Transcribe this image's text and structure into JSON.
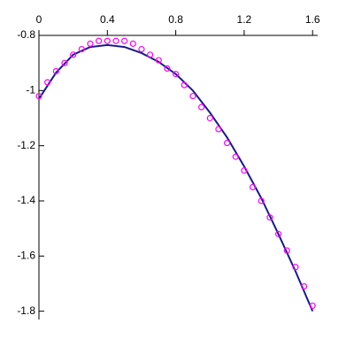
{
  "chart_data": {
    "type": "line",
    "xlim": [
      0,
      1.63
    ],
    "xticks": [
      0,
      0.4,
      0.8,
      1.2,
      1.6
    ],
    "xaxis_position": "top",
    "ylim": [
      -1.83,
      -0.8
    ],
    "yticks": [
      -0.8,
      -1,
      -1.2,
      -1.4,
      -1.6,
      -1.8
    ],
    "series": [
      {
        "mode": "line",
        "color": "#1a1a8c",
        "x": [
          0,
          0.1,
          0.2,
          0.3,
          0.4,
          0.5,
          0.6,
          0.7,
          0.8,
          0.9,
          1.0,
          1.1,
          1.2,
          1.3,
          1.4,
          1.5,
          1.6
        ],
        "values": [
          -1.03,
          -0.935,
          -0.87,
          -0.842,
          -0.835,
          -0.842,
          -0.864,
          -0.896,
          -0.94,
          -1.0,
          -1.08,
          -1.17,
          -1.275,
          -1.39,
          -1.52,
          -1.655,
          -1.8
        ]
      },
      {
        "mode": "markers",
        "color": "#ff00ff",
        "x": [
          0,
          0.05,
          0.1,
          0.15,
          0.2,
          0.25,
          0.3,
          0.35,
          0.4,
          0.45,
          0.5,
          0.55,
          0.6,
          0.65,
          0.7,
          0.75,
          0.8,
          0.85,
          0.9,
          0.95,
          1.0,
          1.05,
          1.1,
          1.15,
          1.2,
          1.25,
          1.3,
          1.35,
          1.4,
          1.45,
          1.5,
          1.55,
          1.6
        ],
        "values": [
          -1.02,
          -0.97,
          -0.93,
          -0.9,
          -0.87,
          -0.85,
          -0.83,
          -0.82,
          -0.82,
          -0.82,
          -0.82,
          -0.83,
          -0.85,
          -0.87,
          -0.89,
          -0.92,
          -0.94,
          -0.98,
          -1.02,
          -1.06,
          -1.1,
          -1.14,
          -1.19,
          -1.24,
          -1.29,
          -1.35,
          -1.4,
          -1.46,
          -1.52,
          -1.58,
          -1.64,
          -1.71,
          -1.78
        ]
      }
    ]
  }
}
